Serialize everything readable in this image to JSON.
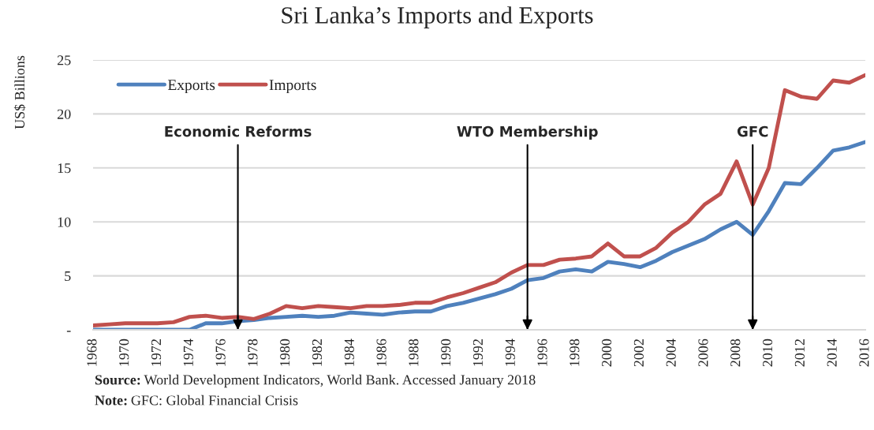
{
  "chart_data": {
    "type": "line",
    "title": "Sri Lanka’s Imports and Exports",
    "ylabel": "US$ Billions",
    "x": [
      1968,
      1969,
      1970,
      1971,
      1972,
      1973,
      1974,
      1975,
      1976,
      1977,
      1978,
      1979,
      1980,
      1981,
      1982,
      1983,
      1984,
      1985,
      1986,
      1987,
      1988,
      1989,
      1990,
      1991,
      1992,
      1993,
      1994,
      1995,
      1996,
      1997,
      1998,
      1999,
      2000,
      2001,
      2002,
      2003,
      2004,
      2005,
      2006,
      2007,
      2008,
      2009,
      2010,
      2011,
      2012,
      2013,
      2014,
      2015,
      2016
    ],
    "series": [
      {
        "name": "Exports",
        "color": "#4f81bd",
        "values": [
          0.0,
          0.0,
          0.0,
          0.0,
          0.0,
          0.0,
          0.0,
          0.6,
          0.6,
          0.8,
          0.9,
          1.1,
          1.2,
          1.3,
          1.2,
          1.3,
          1.6,
          1.5,
          1.4,
          1.6,
          1.7,
          1.7,
          2.2,
          2.5,
          2.9,
          3.3,
          3.8,
          4.6,
          4.8,
          5.4,
          5.6,
          5.4,
          6.3,
          6.1,
          5.8,
          6.4,
          7.2,
          7.8,
          8.4,
          9.3,
          10.0,
          8.8,
          11.0,
          13.6,
          13.5,
          15.0,
          16.6,
          16.9,
          17.4
        ]
      },
      {
        "name": "Imports",
        "color": "#c0504d",
        "values": [
          0.4,
          0.5,
          0.6,
          0.6,
          0.6,
          0.7,
          1.2,
          1.3,
          1.1,
          1.2,
          1.0,
          1.5,
          2.2,
          2.0,
          2.2,
          2.1,
          2.0,
          2.2,
          2.2,
          2.3,
          2.5,
          2.5,
          3.0,
          3.4,
          3.9,
          4.4,
          5.3,
          6.0,
          6.0,
          6.5,
          6.6,
          6.8,
          8.0,
          6.8,
          6.8,
          7.6,
          9.0,
          10.0,
          11.6,
          12.6,
          15.6,
          11.6,
          15.0,
          22.2,
          21.6,
          21.4,
          23.1,
          22.9,
          23.6
        ]
      }
    ],
    "xlim": [
      1968,
      2016
    ],
    "xticks": [
      1968,
      1970,
      1972,
      1974,
      1976,
      1978,
      1980,
      1982,
      1984,
      1986,
      1988,
      1990,
      1992,
      1994,
      1996,
      1998,
      2000,
      2002,
      2004,
      2006,
      2008,
      2010,
      2012,
      2014,
      2016
    ],
    "ylim": [
      0,
      25
    ],
    "yticks": [
      {
        "value": 0,
        "label": "-"
      },
      5,
      10,
      15,
      20,
      25
    ],
    "grid": "y",
    "legend": "top left",
    "marker": "none",
    "line_style": "solid",
    "ref_lines": [
      {
        "axis": "x",
        "value": 1977,
        "label": "Economic Reforms"
      },
      {
        "axis": "x",
        "value": 1995,
        "label": "WTO Membership"
      },
      {
        "axis": "x",
        "value": 2009,
        "label": "GFC"
      }
    ],
    "annotations": [
      "Source: World Development Indicators, World Bank. Accessed January 2018",
      "Note: GFC: Global Financial Crisis"
    ]
  }
}
